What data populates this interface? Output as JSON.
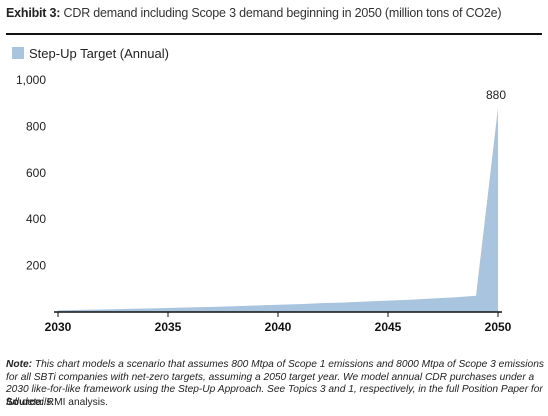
{
  "header": {
    "exhibit_label": "Exhibit 3:",
    "title": "CDR demand including Scope 3 demand beginning in 2050 (million tons of CO2e)"
  },
  "chart_data": {
    "type": "area",
    "series": [
      {
        "name": "Step-Up Target (Annual)",
        "color": "#a9c4de",
        "x": [
          2030,
          2031,
          2032,
          2033,
          2034,
          2035,
          2036,
          2037,
          2038,
          2039,
          2040,
          2041,
          2042,
          2043,
          2044,
          2045,
          2046,
          2047,
          2048,
          2049,
          2050
        ],
        "values": [
          7,
          9,
          11,
          13,
          15,
          17,
          20,
          22,
          25,
          28,
          31,
          34,
          38,
          41,
          45,
          49,
          53,
          58,
          63,
          70,
          880
        ]
      }
    ],
    "x_ticks": [
      "2030",
      "2035",
      "2040",
      "2045",
      "2050"
    ],
    "y_ticks": [
      "200",
      "400",
      "600",
      "800",
      "1,000"
    ],
    "xlim": [
      2030,
      2050
    ],
    "ylim": [
      0,
      1000
    ],
    "annotation": {
      "text": "880",
      "x": 2050,
      "y": 880
    },
    "legend_position": "top-left",
    "grid": false
  },
  "note": {
    "label": "Note:",
    "text": "This chart models a scenario that assumes 800 Mtpa of Scope 1 emissions and 8000 Mtpa of Scope 3 emissions for all SBTi companies with net-zero targets, assuming a 2050 target year. We model annual CDR purchases under a 2030 like-for-like framework using the Step-Up Approach. See Topics 3 and 1, respectively, in the full Position Paper for full details."
  },
  "source": {
    "label": "Source:",
    "text": "RMI analysis."
  }
}
